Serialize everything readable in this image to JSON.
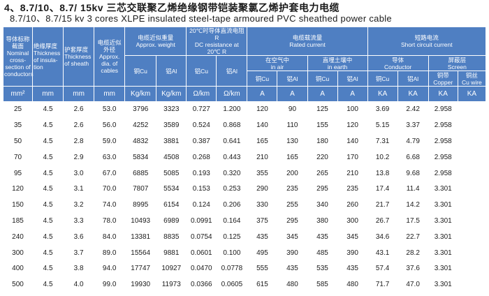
{
  "title_zh": "4、8.7/10、8.7/ 15kv  三芯交联聚乙烯绝缘钢带铠装聚氯乙烯护套电力电缆",
  "title_en": "8.7/10、8.7/15 kv 3 cores XLPE insulated steel-tape armoured PVC sheathed power cable",
  "header": {
    "section_zh": "导体标称截面",
    "section_en": "Nominal cross-section of conductors",
    "insulation_zh": "绝缘厚度",
    "insulation_en": "Thickness of insula-tion",
    "sheath_zh": "护套厚度",
    "sheath_en": "Thickness of sheath",
    "od_zh": "电缆近似外径",
    "od_en": "Approx. dia. of cables",
    "weight_zh": "电缆近似重量",
    "weight_en": "Approx. weight",
    "weight_cu": "铜Cu",
    "weight_al": "铝Al",
    "dcr_zh": "20℃时导体直流电阻R",
    "dcr_en": "DC resistance at 20℃ R",
    "dcr_cu": "铝Cu",
    "dcr_al": "铝Al",
    "rated_zh": "电缆载流量",
    "rated_en": "Rated current",
    "air_zh": "在空气中",
    "air_en": "in air",
    "earth_zh": "直埋土壤中",
    "earth_en": "in earth",
    "air_cu": "铜Cu",
    "air_al": "铝Al",
    "earth_cu": "铜Cu",
    "earth_al": "铝Al",
    "sc_zh": "短路电流",
    "sc_en": "Short circuit current",
    "conductor_zh": "导体",
    "conductor_en": "Conductor",
    "screen_zh": "屏蔽层",
    "screen_en": "Screen",
    "sc_cu": "铜Cu",
    "sc_al": "铝Al",
    "copper_zh": "铜带",
    "copper_en": "Copper",
    "wire_zh": "铜丝",
    "wire_en": "Cu wire"
  },
  "units": [
    "mm²",
    "mm",
    "mm",
    "mm",
    "Kg/km",
    "Kg/km",
    "Ω/km",
    "Ω/km",
    "A",
    "A",
    "A",
    "A",
    "KA",
    "KA",
    "KA",
    "KA"
  ],
  "rows": [
    [
      "25",
      "4.5",
      "2.6",
      "53.0",
      "3796",
      "3323",
      "0.727",
      "1.200",
      "120",
      "90",
      "125",
      "100",
      "3.69",
      "2.42",
      "2.958",
      ""
    ],
    [
      "35",
      "4.5",
      "2.6",
      "56.0",
      "4252",
      "3589",
      "0.524",
      "0.868",
      "140",
      "110",
      "155",
      "120",
      "5.15",
      "3.37",
      "2.958",
      ""
    ],
    [
      "50",
      "4.5",
      "2.8",
      "59.0",
      "4832",
      "3881",
      "0.387",
      "0.641",
      "165",
      "130",
      "180",
      "140",
      "7.31",
      "4.79",
      "2.958",
      ""
    ],
    [
      "70",
      "4.5",
      "2.9",
      "63.0",
      "5834",
      "4508",
      "0.268",
      "0.443",
      "210",
      "165",
      "220",
      "170",
      "10.2",
      "6.68",
      "2.958",
      ""
    ],
    [
      "95",
      "4.5",
      "3.0",
      "67.0",
      "6885",
      "5085",
      "0.193",
      "0.320",
      "355",
      "200",
      "265",
      "210",
      "13.8",
      "9.68",
      "2.958",
      ""
    ],
    [
      "120",
      "4.5",
      "3.1",
      "70.0",
      "7807",
      "5534",
      "0.153",
      "0.253",
      "290",
      "235",
      "295",
      "235",
      "17.4",
      "11.4",
      "3.301",
      ""
    ],
    [
      "150",
      "4.5",
      "3.2",
      "74.0",
      "8995",
      "6154",
      "0.124",
      "0.206",
      "330",
      "255",
      "340",
      "260",
      "21.7",
      "14.2",
      "3.301",
      ""
    ],
    [
      "185",
      "4.5",
      "3.3",
      "78.0",
      "10493",
      "6989",
      "0.0991",
      "0.164",
      "375",
      "295",
      "380",
      "300",
      "26.7",
      "17.5",
      "3.301",
      ""
    ],
    [
      "240",
      "4.5",
      "3.6",
      "84.0",
      "13381",
      "8835",
      "0.0754",
      "0.125",
      "435",
      "345",
      "435",
      "345",
      "34.6",
      "22.7",
      "3.301",
      ""
    ],
    [
      "300",
      "4.5",
      "3.7",
      "89.0",
      "15564",
      "9881",
      "0.0601",
      "0.100",
      "495",
      "390",
      "485",
      "390",
      "43.1",
      "28.2",
      "3.301",
      ""
    ],
    [
      "400",
      "4.5",
      "3.8",
      "94.0",
      "17747",
      "10927",
      "0.0470",
      "0.0778",
      "555",
      "435",
      "535",
      "435",
      "57.4",
      "37.6",
      "3.301",
      ""
    ],
    [
      "500",
      "4.5",
      "4.0",
      "99.0",
      "19930",
      "11973",
      "0.0366",
      "0.0605",
      "615",
      "480",
      "585",
      "480",
      "71.7",
      "47.0",
      "3.301",
      ""
    ]
  ]
}
